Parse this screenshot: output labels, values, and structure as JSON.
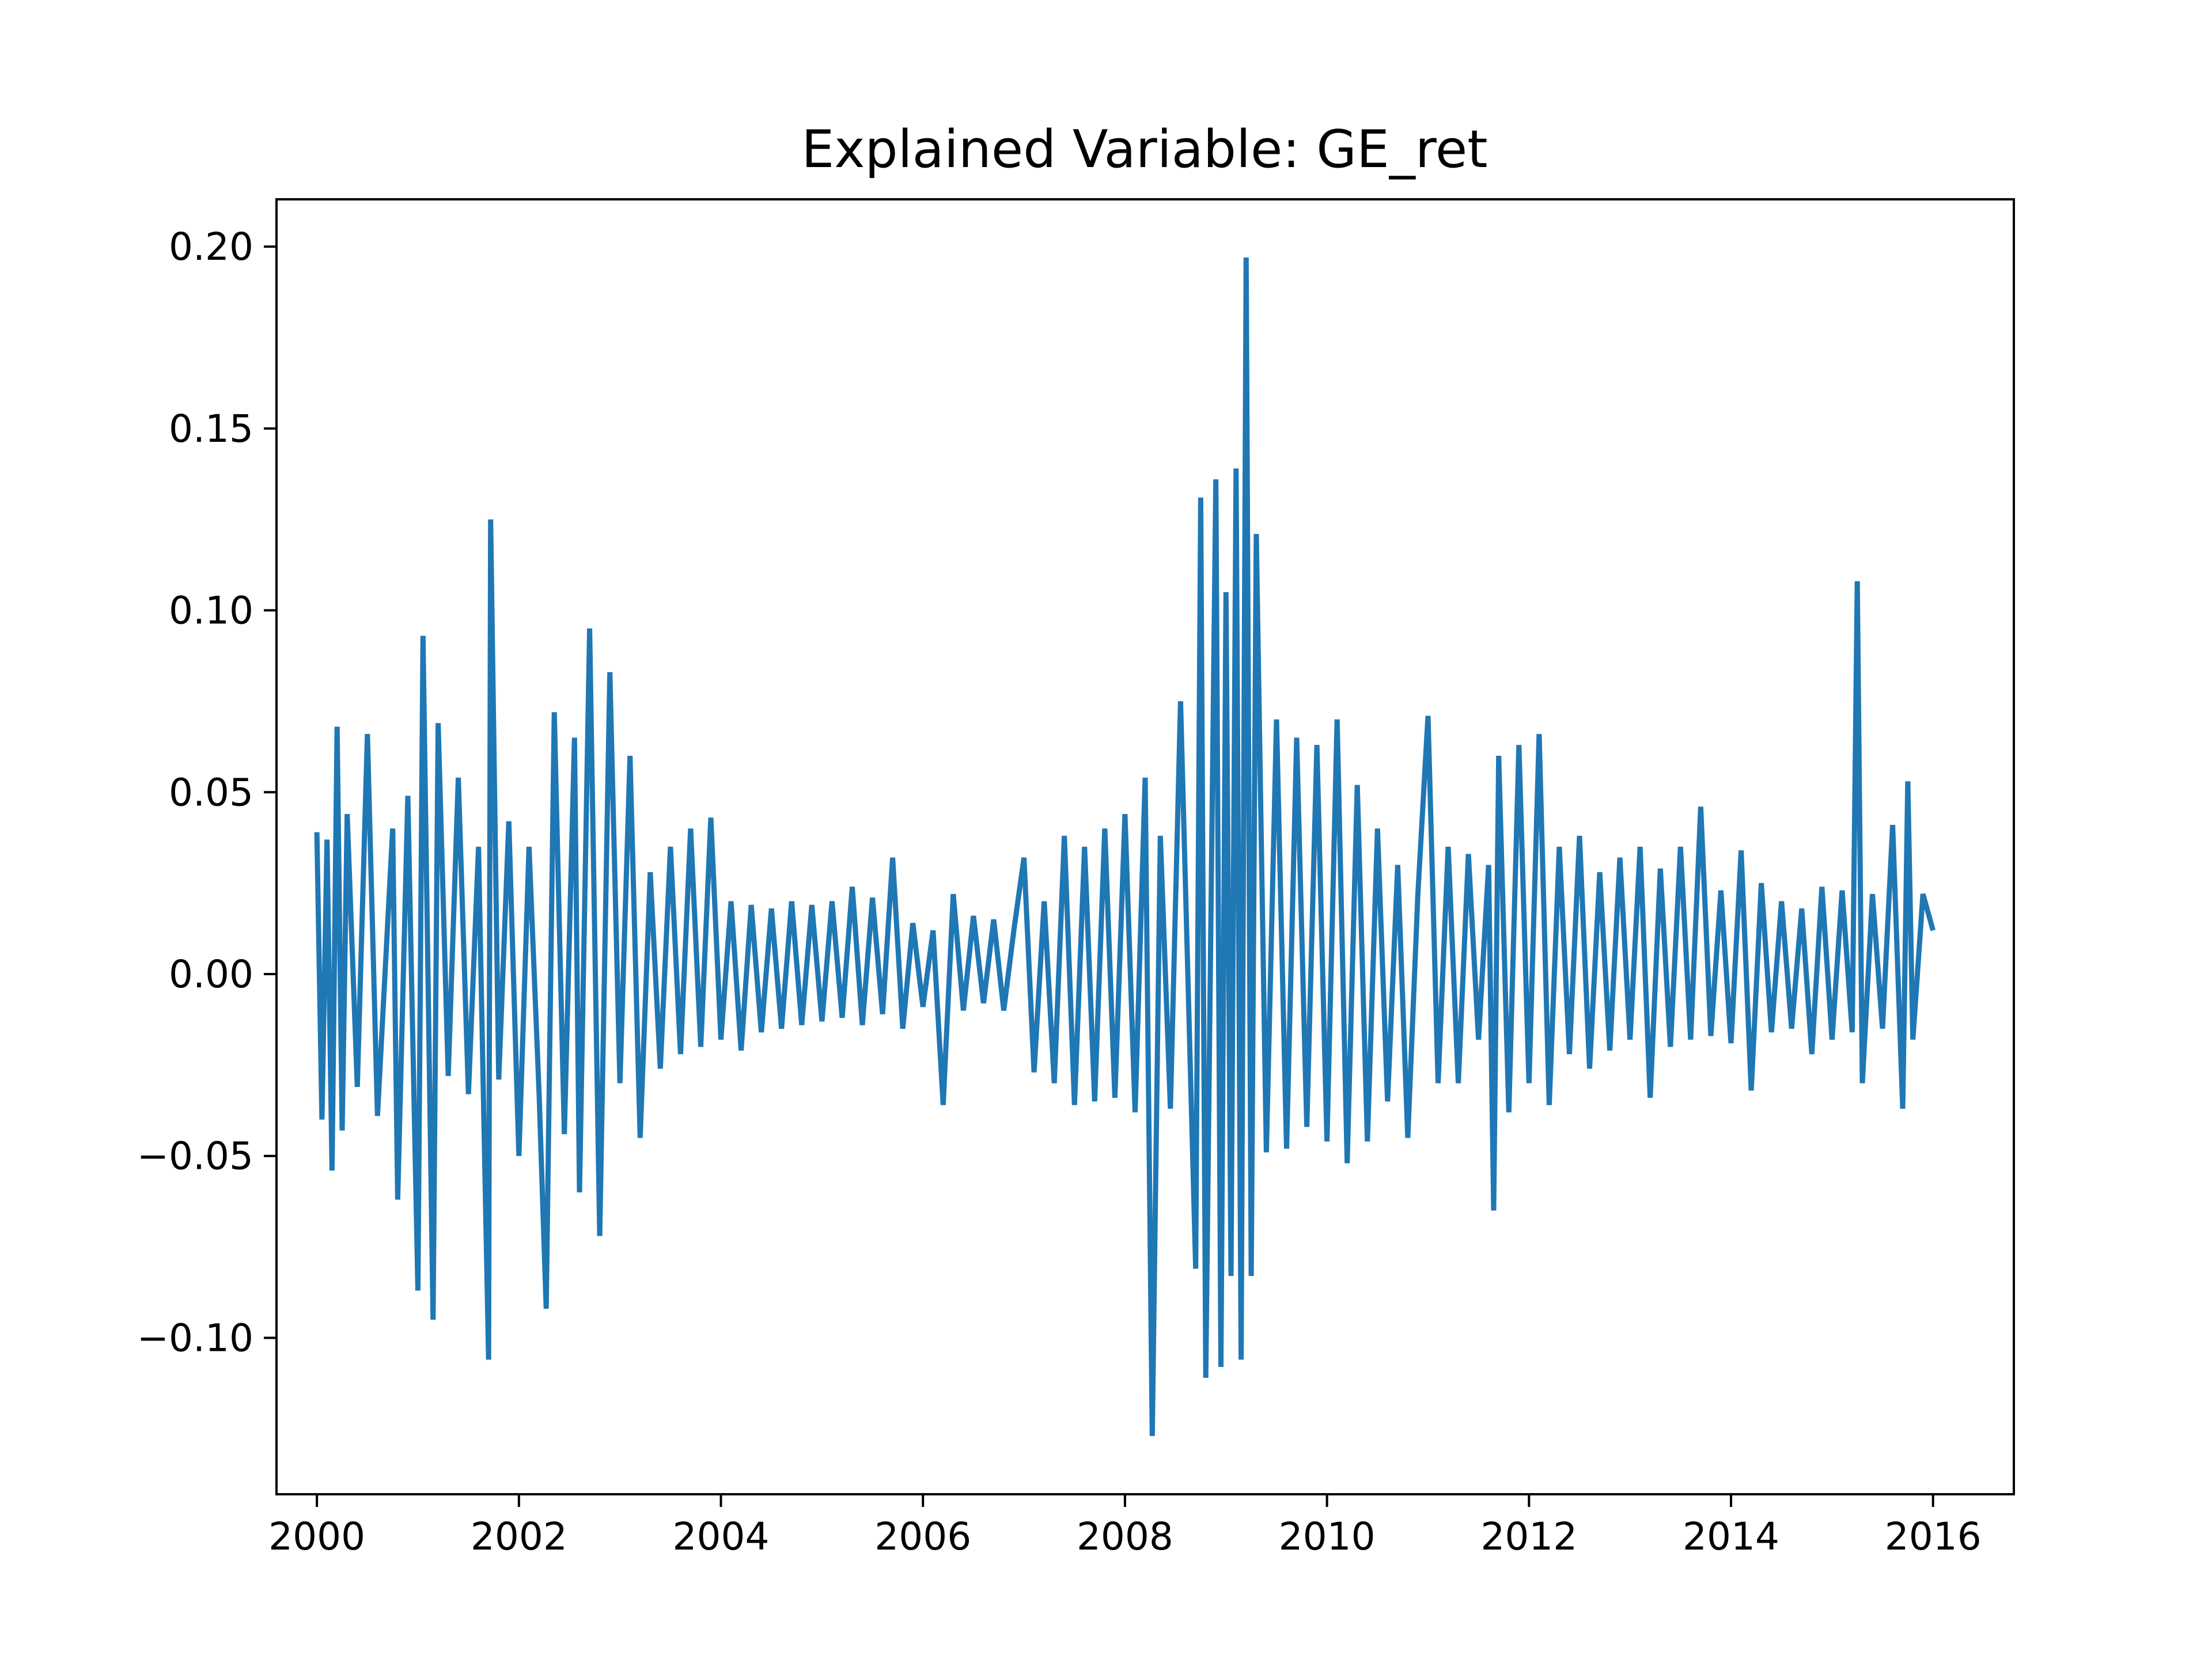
{
  "chart_data": {
    "type": "line",
    "title": "Explained Variable: GE_ret",
    "xlabel": "",
    "ylabel": "",
    "xlim": [
      1999.6,
      2016.8
    ],
    "ylim": [
      -0.143,
      0.213
    ],
    "x_ticks": [
      2000,
      2002,
      2004,
      2006,
      2008,
      2010,
      2012,
      2014,
      2016
    ],
    "x_tick_labels": [
      "2000",
      "2002",
      "2004",
      "2006",
      "2008",
      "2010",
      "2012",
      "2014",
      "2016"
    ],
    "y_ticks": [
      -0.1,
      -0.05,
      0.0,
      0.05,
      0.1,
      0.15,
      0.2
    ],
    "y_tick_labels": [
      "−0.10",
      "−0.05",
      "0.00",
      "0.05",
      "0.10",
      "0.15",
      "0.20"
    ],
    "grid": false,
    "legend": "none",
    "line_color": "#1f77b4",
    "series": [
      {
        "x": [
          2000.0,
          2000.05,
          2000.1,
          2000.15,
          2000.2,
          2000.25,
          2000.3,
          2000.4,
          2000.5,
          2000.6,
          2000.75,
          2000.8,
          2000.9,
          2001.0,
          2001.05,
          2001.15,
          2001.2,
          2001.3,
          2001.4,
          2001.5,
          2001.6,
          2001.7,
          2001.72,
          2001.8,
          2001.9,
          2002.0,
          2002.1,
          2002.2,
          2002.27,
          2002.35,
          2002.45,
          2002.55,
          2002.6,
          2002.7,
          2002.8,
          2002.9,
          2003.0,
          2003.1,
          2003.2,
          2003.3,
          2003.4,
          2003.5,
          2003.6,
          2003.7,
          2003.8,
          2003.9,
          2004.0,
          2004.1,
          2004.2,
          2004.3,
          2004.4,
          2004.5,
          2004.6,
          2004.7,
          2004.8,
          2004.9,
          2005.0,
          2005.1,
          2005.2,
          2005.3,
          2005.4,
          2005.5,
          2005.6,
          2005.7,
          2005.8,
          2005.9,
          2006.0,
          2006.1,
          2006.2,
          2006.3,
          2006.4,
          2006.5,
          2006.6,
          2006.7,
          2006.8,
          2006.9,
          2007.0,
          2007.1,
          2007.2,
          2007.3,
          2007.4,
          2007.5,
          2007.6,
          2007.7,
          2007.8,
          2007.9,
          2008.0,
          2008.1,
          2008.2,
          2008.27,
          2008.35,
          2008.45,
          2008.55,
          2008.7,
          2008.75,
          2008.8,
          2008.9,
          2008.95,
          2009.0,
          2009.05,
          2009.1,
          2009.15,
          2009.2,
          2009.25,
          2009.3,
          2009.4,
          2009.5,
          2009.6,
          2009.7,
          2009.8,
          2009.9,
          2010.0,
          2010.1,
          2010.2,
          2010.3,
          2010.4,
          2010.5,
          2010.6,
          2010.7,
          2010.8,
          2010.9,
          2011.0,
          2011.1,
          2011.2,
          2011.3,
          2011.4,
          2011.5,
          2011.6,
          2011.65,
          2011.7,
          2011.8,
          2011.9,
          2012.0,
          2012.1,
          2012.2,
          2012.3,
          2012.4,
          2012.5,
          2012.6,
          2012.7,
          2012.8,
          2012.9,
          2013.0,
          2013.1,
          2013.2,
          2013.3,
          2013.4,
          2013.5,
          2013.6,
          2013.7,
          2013.8,
          2013.9,
          2014.0,
          2014.1,
          2014.2,
          2014.3,
          2014.4,
          2014.5,
          2014.6,
          2014.7,
          2014.8,
          2014.9,
          2015.0,
          2015.1,
          2015.2,
          2015.25,
          2015.3,
          2015.4,
          2015.5,
          2015.6,
          2015.7,
          2015.75,
          2015.8,
          2015.9,
          2016.0
        ],
        "values": [
          0.039,
          -0.04,
          0.037,
          -0.054,
          0.068,
          -0.043,
          0.044,
          -0.031,
          0.066,
          -0.039,
          0.04,
          -0.062,
          0.049,
          -0.087,
          0.093,
          -0.095,
          0.069,
          -0.028,
          0.054,
          -0.033,
          0.035,
          -0.106,
          0.125,
          -0.029,
          0.042,
          -0.05,
          0.035,
          -0.033,
          -0.092,
          0.072,
          -0.044,
          0.065,
          -0.06,
          0.095,
          -0.072,
          0.083,
          -0.03,
          0.06,
          -0.045,
          0.028,
          -0.026,
          0.035,
          -0.022,
          0.04,
          -0.02,
          0.043,
          -0.018,
          0.02,
          -0.021,
          0.019,
          -0.016,
          0.018,
          -0.015,
          0.02,
          -0.014,
          0.019,
          -0.013,
          0.02,
          -0.012,
          0.024,
          -0.014,
          0.021,
          -0.011,
          0.032,
          -0.015,
          0.014,
          -0.009,
          0.012,
          -0.036,
          0.022,
          -0.01,
          0.016,
          -0.008,
          0.015,
          -0.01,
          0.012,
          0.032,
          -0.027,
          0.02,
          -0.03,
          0.038,
          -0.036,
          0.035,
          -0.035,
          0.04,
          -0.034,
          0.044,
          -0.038,
          0.054,
          -0.127,
          0.038,
          -0.037,
          0.075,
          -0.081,
          0.131,
          -0.111,
          0.136,
          -0.108,
          0.105,
          -0.083,
          0.139,
          -0.106,
          0.197,
          -0.083,
          0.121,
          -0.049,
          0.07,
          -0.048,
          0.065,
          -0.042,
          0.063,
          -0.046,
          0.07,
          -0.052,
          0.052,
          -0.046,
          0.04,
          -0.035,
          0.03,
          -0.045,
          0.022,
          0.071,
          -0.03,
          0.035,
          -0.03,
          0.033,
          -0.018,
          0.03,
          -0.065,
          0.06,
          -0.038,
          0.063,
          -0.03,
          0.066,
          -0.036,
          0.035,
          -0.022,
          0.038,
          -0.026,
          0.028,
          -0.021,
          0.032,
          -0.018,
          0.035,
          -0.034,
          0.029,
          -0.02,
          0.035,
          -0.018,
          0.046,
          -0.017,
          0.023,
          -0.019,
          0.034,
          -0.032,
          0.025,
          -0.016,
          0.02,
          -0.015,
          0.018,
          -0.022,
          0.024,
          -0.018,
          0.023,
          -0.016,
          0.108,
          -0.03,
          0.022,
          -0.015,
          0.041,
          -0.037,
          0.053,
          -0.018,
          0.022,
          0.012
        ]
      }
    ]
  }
}
